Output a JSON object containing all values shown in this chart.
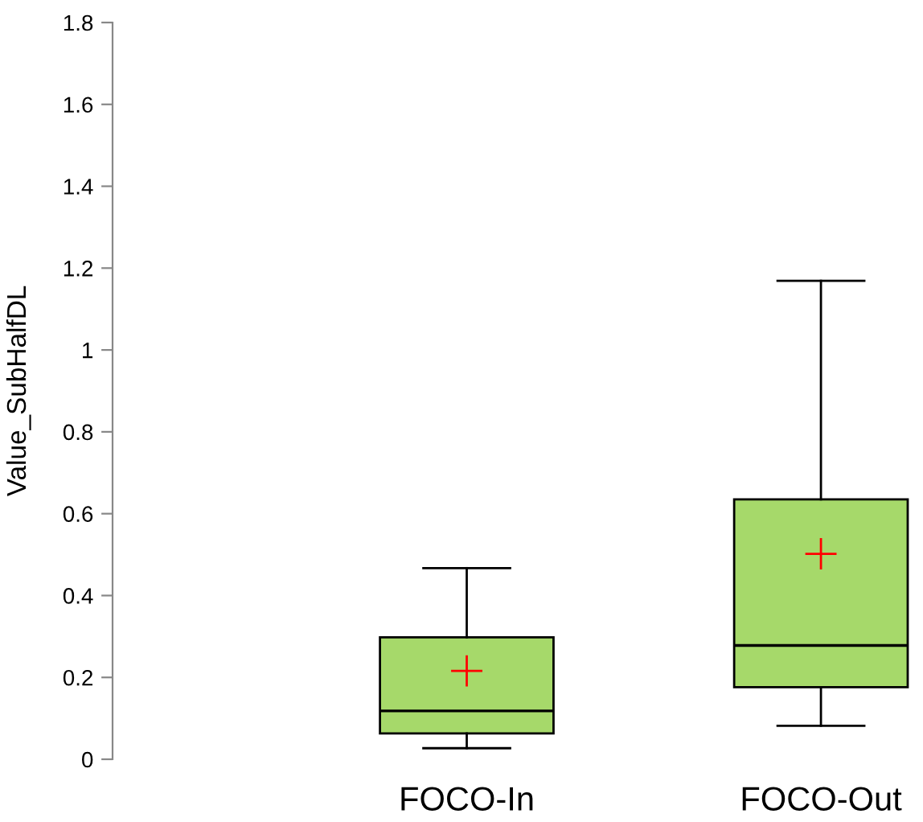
{
  "chart_data": {
    "type": "box",
    "ylabel": "Value_SubHalfDL",
    "categories": [
      "FOCO-In",
      "FOCO-Out"
    ],
    "color": "#a6d96a",
    "boxes": [
      {
        "low": 0.027,
        "q1": 0.063,
        "median": 0.118,
        "q3": 0.298,
        "high": 0.467,
        "mean": 0.216
      },
      {
        "low": 0.082,
        "q1": 0.176,
        "median": 0.278,
        "q3": 0.635,
        "high": 1.169,
        "mean": 0.502
      }
    ],
    "ylim": [
      0,
      1.8
    ],
    "yticks": [
      0,
      0.2,
      0.4,
      0.6,
      0.8,
      1,
      1.2,
      1.4,
      1.6,
      1.8
    ],
    "grid": false
  }
}
